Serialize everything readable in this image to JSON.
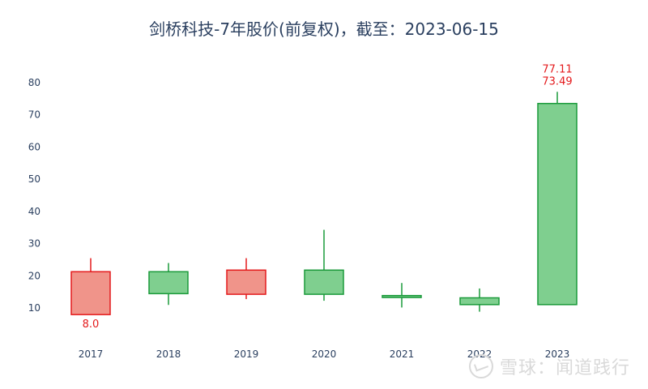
{
  "chart_data": {
    "type": "candlestick",
    "title": "剑桥科技-7年股价(前复权)，截至：2023-06-15",
    "xlabel": "",
    "ylabel": "",
    "ylim": [
      0,
      88
    ],
    "yticks": [
      10,
      20,
      30,
      40,
      50,
      60,
      70,
      80
    ],
    "categories": [
      "2017",
      "2018",
      "2019",
      "2020",
      "2021",
      "2022",
      "2023"
    ],
    "candles": [
      {
        "x": "2017",
        "open": 21.3,
        "close": 8.0,
        "high": 25.5,
        "low": 8.0
      },
      {
        "x": "2018",
        "open": 14.5,
        "close": 21.3,
        "high": 24.0,
        "low": 11.0
      },
      {
        "x": "2019",
        "open": 21.8,
        "close": 14.3,
        "high": 25.5,
        "low": 12.8
      },
      {
        "x": "2020",
        "open": 14.3,
        "close": 21.8,
        "high": 34.3,
        "low": 12.3
      },
      {
        "x": "2021",
        "open": 13.3,
        "close": 13.9,
        "high": 17.8,
        "low": 10.2
      },
      {
        "x": "2022",
        "open": 11.1,
        "close": 13.2,
        "high": 16.1,
        "low": 8.9
      },
      {
        "x": "2023",
        "open": 11.1,
        "close": 73.49,
        "high": 77.11,
        "low": 11.1
      }
    ],
    "annotations": [
      {
        "x": "2017",
        "text": "8.0",
        "y": 8.0,
        "position": "below"
      },
      {
        "x": "2023",
        "text": "77.11",
        "y": 77.11,
        "position": "above"
      },
      {
        "x": "2023",
        "text": "73.49",
        "y": 73.49,
        "position": "above"
      }
    ],
    "colors": {
      "up_fill": "#f0948a",
      "up_line": "#e41a1c",
      "down_fill": "#7fcf8f",
      "down_line": "#1a9a3a",
      "axis_text": "#2a3f5f",
      "annotation": "#e41a1c"
    },
    "grid": false,
    "legend": "none"
  },
  "watermark": {
    "text": "雪球：闻道践行",
    "icon": "snowball-logo-icon"
  }
}
